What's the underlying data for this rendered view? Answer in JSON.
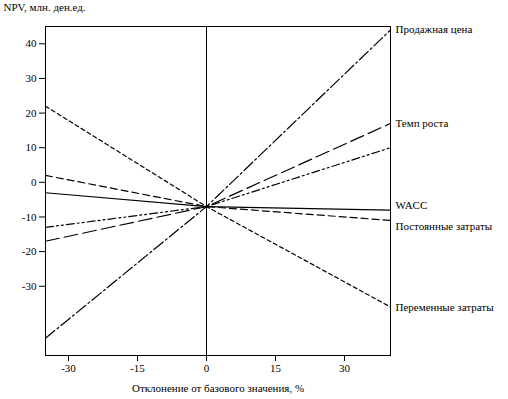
{
  "chart_data": {
    "type": "line",
    "x_label": "Отклонение от базового значения, %",
    "y_label": "NPV, млн. ден.ед.",
    "x": [
      -35,
      0,
      40
    ],
    "xlim": [
      -35,
      40
    ],
    "xticks": [
      -30,
      -15,
      0,
      15,
      30
    ],
    "ylim": [
      -50,
      45
    ],
    "yticks": [
      -30,
      -20,
      -10,
      0,
      10,
      20,
      30,
      40
    ],
    "grid": false,
    "series": [
      {
        "name": "Продажная цена",
        "color": "#000000",
        "line_style": "dashdot",
        "values": [
          -45,
          -7,
          44
        ]
      },
      {
        "name": "Темп роста",
        "color": "#000000",
        "line_style": "longdash",
        "values": [
          -17,
          -7,
          17
        ]
      },
      {
        "name": null,
        "color": "#000000",
        "line_style": "dashdotdot",
        "values": [
          -13,
          -7,
          10
        ]
      },
      {
        "name": "WACC",
        "color": "#000000",
        "line_style": "solid",
        "values": [
          -3,
          -7,
          -8
        ]
      },
      {
        "name": "Постоянные затраты",
        "color": "#000000",
        "line_style": "dashed",
        "values": [
          2,
          -7,
          -11
        ]
      },
      {
        "name": "Переменные затраты",
        "color": "#000000",
        "line_style": "dotted",
        "values": [
          22,
          -7,
          -36
        ]
      }
    ]
  }
}
